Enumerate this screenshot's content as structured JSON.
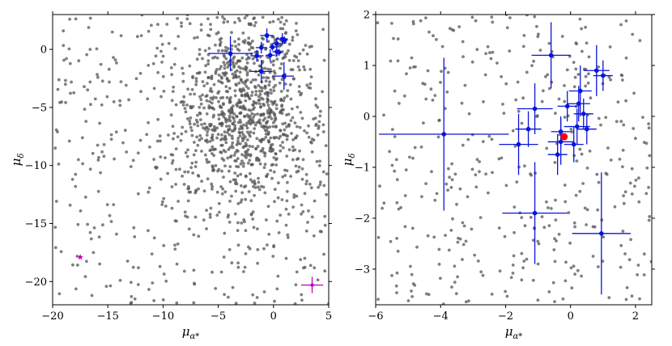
{
  "colors": {
    "field_stars": "#555555",
    "members": "#0a14dc",
    "mean_point": "#ff0000",
    "outlier": "#c000c0"
  },
  "chart_data": [
    {
      "type": "scatter",
      "panel": "left",
      "xlabel": {
        "main": "μ",
        "sub": "α*"
      },
      "ylabel": {
        "main": "μ",
        "sub": "δ"
      },
      "xlim": [
        -20,
        5
      ],
      "ylim": [
        -22,
        3
      ],
      "xticks": [
        -20,
        -15,
        -10,
        -5,
        0,
        5
      ],
      "yticks": [
        0,
        -5,
        -10,
        -15,
        -20
      ],
      "grid": false,
      "field_star_count": 1400,
      "members": [
        {
          "x": -3.9,
          "y": -0.35,
          "xerr": 2.0,
          "yerr": 1.5
        },
        {
          "x": -1.1,
          "y": -1.9,
          "xerr": 1.0,
          "yerr": 1.0
        },
        {
          "x": 0.95,
          "y": -2.3,
          "xerr": 0.9,
          "yerr": 1.2
        },
        {
          "x": -0.6,
          "y": 1.2,
          "xerr": 0.6,
          "yerr": 0.6
        },
        {
          "x": -1.5,
          "y": -0.55,
          "xerr": 0.6,
          "yerr": 0.5
        },
        {
          "x": -1.1,
          "y": 0.15,
          "xerr": 0.5,
          "yerr": 0.5
        },
        {
          "x": -0.3,
          "y": -0.5,
          "xerr": 0.4,
          "yerr": 0.5
        },
        {
          "x": 0.3,
          "y": 0.5,
          "xerr": 0.4,
          "yerr": 0.5
        },
        {
          "x": 0.8,
          "y": 0.9,
          "xerr": 0.5,
          "yerr": 0.5
        },
        {
          "x": 0.3,
          "y": -0.2,
          "xerr": 0.4,
          "yerr": 0.4
        },
        {
          "x": -0.1,
          "y": 0.2,
          "xerr": 0.3,
          "yerr": 0.3
        },
        {
          "x": 0.5,
          "y": -0.25,
          "xerr": 0.3,
          "yerr": 0.3
        },
        {
          "x": 1.0,
          "y": 0.8,
          "xerr": 0.3,
          "yerr": 0.3
        }
      ],
      "outliers": [
        {
          "x": 3.5,
          "y": -20.3,
          "xerr": 1.0,
          "yerr": 0.7,
          "marker": "plus"
        },
        {
          "x": -17.5,
          "y": -17.9,
          "marker": "star"
        }
      ]
    },
    {
      "type": "scatter",
      "panel": "right",
      "xlabel": {
        "main": "μ",
        "sub": "α*"
      },
      "ylabel": {
        "main": "μ",
        "sub": "δ"
      },
      "xlim": [
        -6,
        2.5
      ],
      "ylim": [
        -3.7,
        2
      ],
      "xticks": [
        -6,
        -4,
        -2,
        0,
        2
      ],
      "yticks": [
        2,
        1,
        0,
        -1,
        -2,
        -3
      ],
      "grid": false,
      "field_star_count": 400,
      "members": [
        {
          "x": -3.9,
          "y": -0.35,
          "xerr": 2.0,
          "yerr": 1.5
        },
        {
          "x": -1.1,
          "y": -1.9,
          "xerr": 1.0,
          "yerr": 1.0
        },
        {
          "x": 0.95,
          "y": -2.3,
          "xerr": 0.9,
          "yerr": 1.2
        },
        {
          "x": -0.6,
          "y": 1.2,
          "xerr": 0.6,
          "yerr": 0.65
        },
        {
          "x": -1.6,
          "y": -0.55,
          "xerr": 0.6,
          "yerr": 0.6
        },
        {
          "x": -1.1,
          "y": 0.15,
          "xerr": 0.55,
          "yerr": 0.5
        },
        {
          "x": -1.3,
          "y": -0.25,
          "xerr": 0.4,
          "yerr": 0.35
        },
        {
          "x": -0.4,
          "y": -0.75,
          "xerr": 0.3,
          "yerr": 0.4
        },
        {
          "x": -0.3,
          "y": -0.5,
          "xerr": 0.4,
          "yerr": 0.45
        },
        {
          "x": 0.1,
          "y": -0.55,
          "xerr": 0.3,
          "yerr": 0.35
        },
        {
          "x": -0.1,
          "y": 0.2,
          "xerr": 0.3,
          "yerr": 0.3
        },
        {
          "x": 0.3,
          "y": 0.5,
          "xerr": 0.35,
          "yerr": 0.5
        },
        {
          "x": 0.25,
          "y": 0.25,
          "xerr": 0.35,
          "yerr": 0.35
        },
        {
          "x": 0.2,
          "y": -0.2,
          "xerr": 0.4,
          "yerr": 0.35
        },
        {
          "x": 0.5,
          "y": -0.25,
          "xerr": 0.3,
          "yerr": 0.3
        },
        {
          "x": 0.4,
          "y": 0.05,
          "xerr": 0.3,
          "yerr": 0.3
        },
        {
          "x": 0.8,
          "y": 0.9,
          "xerr": 0.4,
          "yerr": 0.5
        },
        {
          "x": 1.0,
          "y": 0.8,
          "xerr": 0.3,
          "yerr": 0.3
        },
        {
          "x": -0.3,
          "y": -0.3,
          "xerr": 0.3,
          "yerr": 0.3
        }
      ],
      "mean": {
        "x": -0.2,
        "y": -0.4
      }
    }
  ]
}
